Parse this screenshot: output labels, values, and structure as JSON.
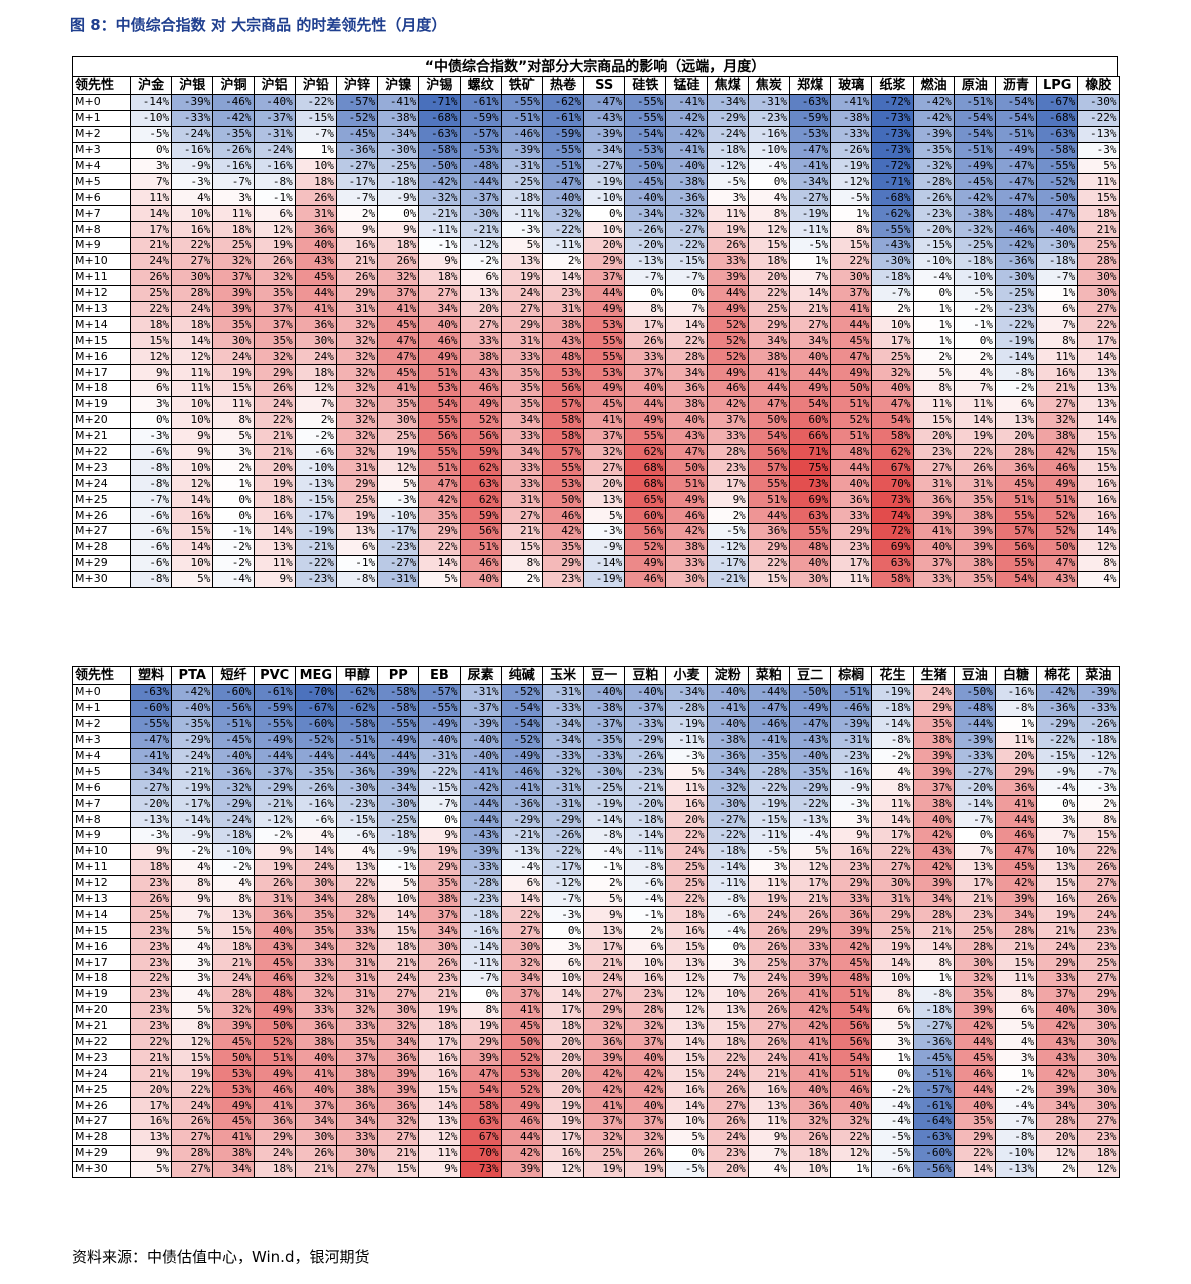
{
  "figure_title": "图 8：中债综合指数 对 大宗商品 的时差领先性（月度）",
  "table1": {
    "subtitle": "“中债综合指数”对部分大宗商品的影响（远端，月度）",
    "corner": "领先性",
    "columns": [
      "沪金",
      "沪银",
      "沪铜",
      "沪铝",
      "沪铅",
      "沪锌",
      "沪镍",
      "沪锡",
      "螺纹",
      "铁矿",
      "热卷",
      "SS",
      "硅铁",
      "锰硅",
      "焦煤",
      "焦炭",
      "郑煤",
      "玻璃",
      "纸浆",
      "燃油",
      "原油",
      "沥青",
      "LPG",
      "橡胶"
    ],
    "rows": [
      "-14 -39 -46 -40 -22 -57 -41 -71 -61 -55 -62 -47 -55 -41 -34 -31 -63 -41 -72 -42 -51 -54 -67 -30",
      "-10 -33 -42 -37 -15 -52 -38 -68 -59 -51 -61 -43 -55 -42 -29 -23 -59 -38 -73 -42 -54 -54 -68 -22",
      "-5 -24 -35 -31 -7 -45 -34 -63 -57 -46 -59 -39 -54 -42 -24 -16 -53 -33 -73 -39 -54 -51 -63 -13",
      "0 -16 -26 -24 1 -36 -30 -58 -53 -39 -55 -34 -53 -41 -18 -10 -47 -26 -73 -35 -51 -49 -58 -3",
      "3 -9 -16 -16 10 -27 -25 -50 -48 -31 -51 -27 -50 -40 -12 -4 -41 -19 -72 -32 -49 -47 -55 5",
      "7 -3 -7 -8 18 -17 -18 -42 -44 -25 -47 -19 -45 -38 -5 0 -34 -12 -71 -28 -45 -47 -52 11",
      "11 4 3 -1 26 -7 -9 -32 -37 -18 -40 -10 -40 -36 3 4 -27 -5 -68 -26 -42 -47 -50 15",
      "14 10 11 6 31 2 0 -21 -30 -11 -32 0 -34 -32 11 8 -19 1 -62 -23 -38 -48 -47 18",
      "17 16 18 12 36 9 9 -11 -21 -3 -22 10 -26 -27 19 12 -11 8 -55 -20 -32 -46 -40 21",
      "21 22 25 19 40 16 18 -1 -12 5 -11 20 -20 -22 26 15 -5 15 -43 -15 -25 -42 -30 25",
      "24 27 32 26 43 21 26 9 -2 13 2 29 -13 -15 33 18 1 22 -30 -10 -18 -36 -18 28",
      "26 30 37 32 45 26 32 18 6 19 14 37 -7 -7 39 20 7 30 -18 -4 -10 -30 -7 30",
      "25 28 39 35 44 29 37 27 13 24 23 44 0 0 44 22 14 37 -7 0 -5 -25 1 30",
      "22 24 39 37 41 31 41 34 20 27 31 49 8 7 49 25 21 41 2 1 -2 -23 6 27",
      "18 18 35 37 36 32 45 40 27 29 38 53 17 14 52 29 27 44 10 1 -1 -22 7 22",
      "15 14 30 35 30 32 47 46 33 31 43 55 26 22 52 34 34 45 17 1 0 -19 8 17",
      "12 12 24 32 24 32 47 49 38 33 48 55 33 28 52 38 40 47 25 2 2 -14 11 14",
      "9 11 19 29 18 32 45 51 43 35 53 53 37 34 49 41 44 49 32 5 4 -8 16 13",
      "6 11 15 26 12 32 41 53 46 35 56 49 40 36 46 44 49 50 40 8 7 -2 21 13",
      "3 10 11 24 7 32 35 54 49 35 57 45 44 38 42 47 54 51 47 11 11 6 27 13",
      "0 10 8 22 2 32 30 55 52 34 58 41 49 40 37 50 60 52 54 15 14 13 32 14",
      "-3 9 5 21 -2 32 25 56 56 33 58 37 55 43 33 54 66 51 58 20 19 20 38 15",
      "-6 9 3 21 -6 32 19 55 59 34 57 32 62 47 28 56 71 48 62 23 22 28 42 15",
      "-8 10 2 20 -10 31 12 51 62 33 55 27 68 50 23 57 75 44 67 27 26 36 46 15",
      "-8 12 1 19 -13 29 5 47 63 33 53 20 68 51 17 55 73 40 70 31 31 45 49 16",
      "-7 14 0 18 -15 25 -3 42 62 31 50 13 65 49 9 51 69 36 73 36 35 51 51 16",
      "-6 16 0 16 -17 19 -10 35 59 27 46 5 60 46 2 44 63 33 74 39 38 55 52 16",
      "-6 15 -1 14 -19 13 -17 29 56 21 42 -3 56 42 -5 36 55 29 72 41 39 57 52 14",
      "-6 14 -2 13 -21 6 -23 22 51 15 35 -9 52 38 -12 29 48 23 69 40 39 56 50 12",
      "-6 10 -2 11 -22 -1 -27 14 46 8 29 -14 49 33 -17 22 40 17 63 37 38 55 47 8",
      "-8 5 -4 9 -23 -8 -31 5 40 2 23 -19 46 30 -21 15 30 11 58 33 35 54 43 4"
    ]
  },
  "table2": {
    "corner": "领先性",
    "columns": [
      "塑料",
      "PTA",
      "短纤",
      "PVC",
      "MEG",
      "甲醇",
      "PP",
      "EB",
      "尿素",
      "纯碱",
      "玉米",
      "豆一",
      "豆粕",
      "小麦",
      "淀粉",
      "菜粕",
      "豆二",
      "棕榈",
      "花生",
      "生猪",
      "豆油",
      "白糖",
      "棉花",
      "菜油"
    ],
    "rows": [
      "-63 -42 -60 -61 -70 -62 -58 -57 -31 -52 -31 -40 -40 -34 -40 -44 -50 -51 -19 24 -50 -16 -42 -39",
      "-60 -40 -56 -59 -67 -62 -58 -55 -37 -54 -33 -38 -37 -28 -41 -47 -49 -46 -18 29 -48 -8 -36 -33",
      "-55 -35 -51 -55 -60 -58 -55 -49 -39 -54 -34 -37 -33 -19 -40 -46 -47 -39 -14 35 -44 1 -29 -26",
      "-47 -29 -45 -49 -52 -51 -49 -40 -40 -52 -34 -35 -29 -11 -38 -41 -43 -31 -8 38 -39 11 -22 -18",
      "-41 -24 -40 -44 -44 -44 -44 -31 -40 -49 -33 -33 -26 -3 -36 -35 -40 -23 -2 39 -33 20 -15 -12",
      "-34 -21 -36 -37 -35 -36 -39 -22 -41 -46 -32 -30 -23 5 -34 -28 -35 -16 4 39 -27 29 -9 -7",
      "-27 -19 -32 -29 -26 -30 -34 -15 -42 -41 -31 -25 -21 11 -32 -22 -29 -9 8 37 -20 36 -4 -3",
      "-20 -17 -29 -21 -16 -23 -30 -7 -44 -36 -31 -19 -20 16 -30 -19 -22 -3 11 38 -14 41 0 2",
      "-13 -14 -24 -12 -6 -15 -25 0 -44 -29 -29 -14 -18 20 -27 -15 -13 3 14 40 -7 44 3 8",
      "-3 -9 -18 -2 4 -6 -18 9 -43 -21 -26 -8 -14 22 -22 -11 -4 9 17 42 0 46 7 15",
      "9 -2 -10 9 14 4 -9 19 -39 -13 -22 -4 -11 24 -18 -5 5 16 22 43 7 47 10 22",
      "18 4 -2 19 24 13 -1 29 -33 -4 -17 -1 -8 25 -14 3 12 23 27 42 13 45 13 26",
      "23 8 4 26 30 22 5 35 -28 6 -12 2 -6 25 -11 11 17 29 30 39 17 42 15 27",
      "26 9 8 31 34 28 10 38 -23 14 -7 5 -4 22 -8 19 21 33 31 34 21 39 16 26",
      "25 7 13 36 35 32 14 37 -18 22 -3 9 -1 18 -6 24 26 36 29 28 23 34 19 24",
      "23 5 15 40 35 33 15 34 -16 27 0 13 2 16 -4 26 29 39 25 21 25 28 21 23",
      "23 4 18 43 34 32 18 30 -14 30 3 17 6 15 0 26 33 42 19 14 28 21 24 23",
      "23 3 21 45 33 31 21 26 -11 32 6 21 10 13 3 25 37 45 14 8 30 15 29 25",
      "22 3 24 46 32 31 24 23 -7 34 10 24 16 12 7 24 39 48 10 1 32 11 33 27",
      "23 4 28 48 32 31 27 21 0 37 14 27 23 12 10 26 41 51 8 -8 35 8 37 29",
      "23 5 32 49 33 32 30 19 8 41 17 29 28 12 13 26 42 54 6 -18 39 6 40 30",
      "23 8 39 50 36 33 32 18 19 45 18 32 32 13 15 27 42 56 5 -27 42 5 42 30",
      "22 12 45 52 38 35 34 17 29 50 20 36 37 14 18 26 41 56 3 -36 44 4 43 30",
      "21 15 50 51 40 37 36 16 39 52 20 39 40 15 22 24 41 54 1 -45 45 3 43 30",
      "21 19 53 49 41 38 39 16 47 53 20 42 42 15 24 21 41 51 0 -51 46 1 42 30",
      "20 22 53 46 40 38 39 15 54 52 20 42 42 16 26 16 40 46 -2 -57 44 -2 39 30",
      "17 24 49 41 37 36 36 14 58 49 19 41 40 14 27 13 36 40 -4 -61 40 -4 34 30",
      "16 26 45 36 34 34 32 13 63 46 19 37 37 10 26 11 32 32 -4 -64 35 -7 28 27",
      "13 27 41 29 30 33 27 12 67 44 17 32 32 5 24 9 26 22 -5 -63 29 -8 20 23",
      "9 28 38 24 26 30 21 11 70 42 16 25 26 0 23 7 18 12 -5 -60 22 -10 12 18",
      "5 27 34 18 21 27 15 9 73 39 12 19 19 -5 20 4 10 1 -6 -56 14 -13 2 12"
    ]
  },
  "row_prefix": "M+",
  "percent_suffix": "%",
  "source": "资料来源：中债估值中心，Win.d，银河期货",
  "colors": {
    "title": "#1f3f8f",
    "negative": "#3f68b8",
    "positive": "#e24a4a",
    "neutral": "#ffffff"
  }
}
